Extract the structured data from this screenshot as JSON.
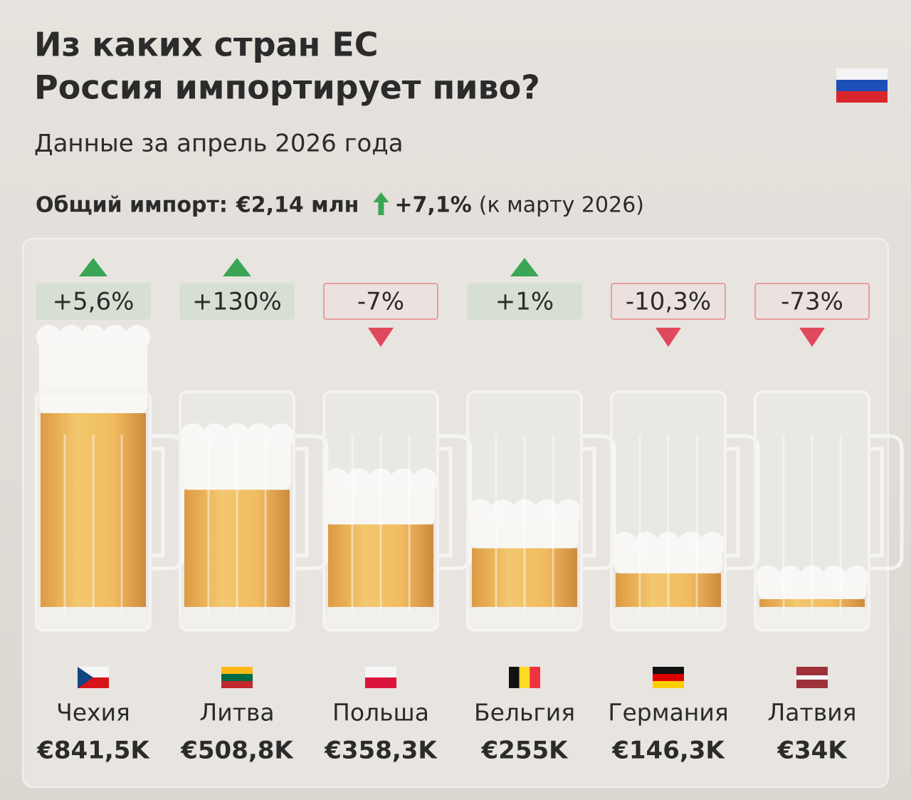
{
  "chart_data": {
    "type": "bar",
    "title": [
      "Из каких стран ЕС",
      "Россия импортирует пиво?"
    ],
    "subtitle": "Данные за апрель 2026 года",
    "total": {
      "label": "Общий импорт:",
      "value": "€2,14 млн",
      "change": "+7,1%",
      "note": "(к марту 2026)"
    },
    "categories": [
      "Чехия",
      "Литва",
      "Польша",
      "Бельгия",
      "Германия",
      "Латвия"
    ],
    "values": [
      841.5,
      508.8,
      358.3,
      255,
      146.3,
      34
    ],
    "value_labels": [
      "€841,5K",
      "€508,8K",
      "€358,3K",
      "€255K",
      "€146,3K",
      "€34K"
    ],
    "changes": [
      5.6,
      130,
      -7,
      1,
      -10.3,
      -73
    ],
    "change_labels": [
      "+5,6%",
      "+130%",
      "-7%",
      "+1%",
      "-10,3%",
      "-73%"
    ],
    "color": "#e9a93a"
  }
}
